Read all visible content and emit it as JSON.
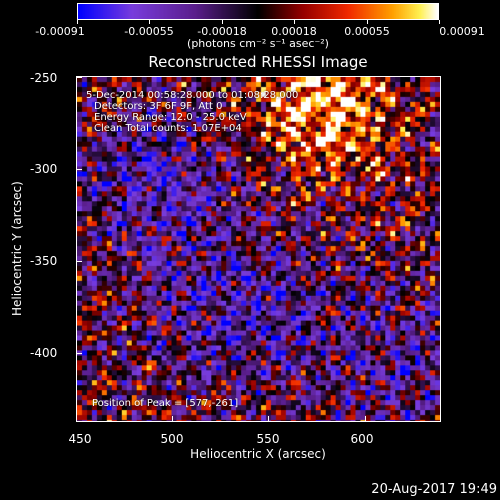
{
  "colorbar": {
    "tick_labels": [
      "-0.00091",
      "-0.00055",
      "-0.00018",
      "0.00018",
      "0.00055",
      "0.00091"
    ],
    "units": "(photons cm⁻² s⁻¹ asec⁻²)",
    "colors": [
      "#0000ff",
      "#8040ff",
      "#e000e0",
      "#000000",
      "#c00000",
      "#ff8000",
      "#ffffff"
    ]
  },
  "title": "Reconstructed RHESSI Image",
  "info": {
    "time": "5-Dec-2014 00:58:28.000 to 01:08:28.000",
    "detectors": "Detectors: 3F 6F 9F, Att 0",
    "energy": "Energy Range: 12.0 - 25.0 keV",
    "method": "Clean     Total counts: 1.07E+04"
  },
  "peak_text": "Position of Peak = [577,-261]",
  "axes": {
    "xlabel": "Heliocentric X (arcsec)",
    "ylabel": "Heliocentric Y (arcsec)",
    "xticks": [
      "450",
      "500",
      "550",
      "600"
    ],
    "yticks": [
      "-250",
      "-300",
      "-350",
      "-400"
    ]
  },
  "footer_date": "20-Aug-2017 19:49"
}
